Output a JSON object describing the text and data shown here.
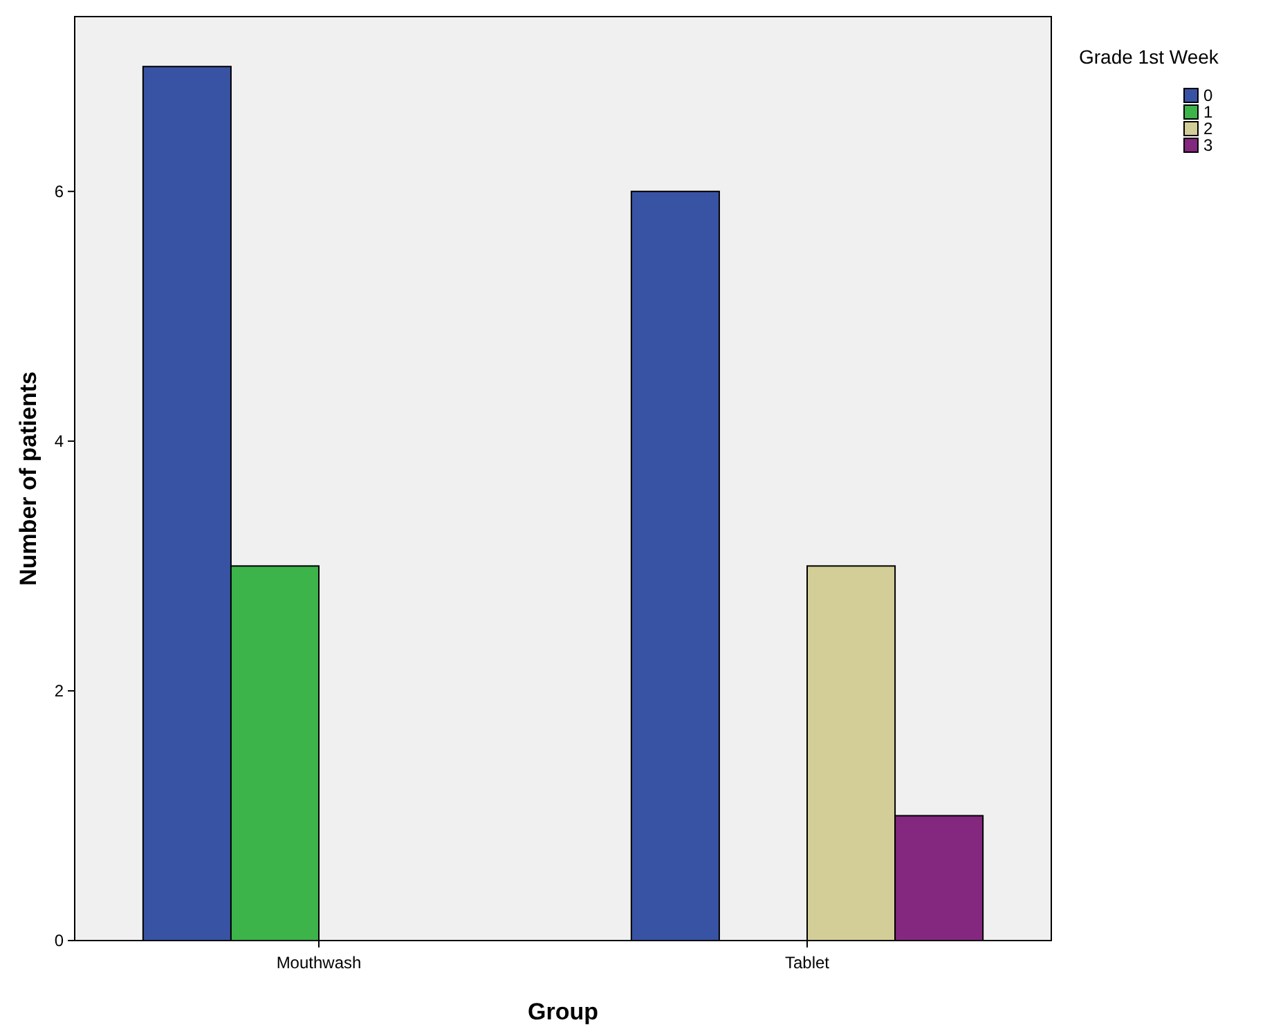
{
  "chart_data": {
    "type": "bar",
    "xlabel": "Group",
    "ylabel": "Number of patients",
    "legend_title": "Grade 1st Week",
    "categories": [
      "Mouthwash",
      "Tablet"
    ],
    "series": [
      {
        "name": "0",
        "color": "#3953a4",
        "values": [
          7,
          6
        ]
      },
      {
        "name": "1",
        "color": "#3cb44a",
        "values": [
          3,
          null
        ]
      },
      {
        "name": "2",
        "color": "#d3ce97",
        "values": [
          null,
          3
        ]
      },
      {
        "name": "3",
        "color": "#84277f",
        "values": [
          null,
          1
        ]
      }
    ],
    "ylim": [
      0,
      7.4
    ],
    "yticks": [
      0,
      2,
      4,
      6
    ],
    "grid": false,
    "legend": "top right"
  }
}
